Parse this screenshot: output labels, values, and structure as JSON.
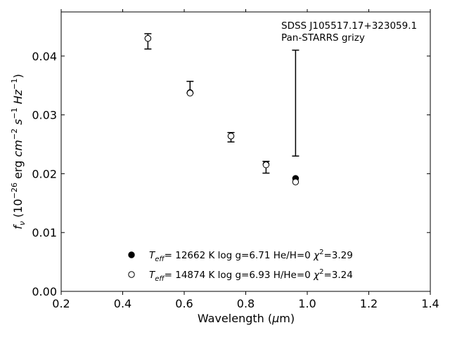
{
  "chart_data": {
    "type": "scatter",
    "xlabel_main": "Wavelength (",
    "xlabel_mu": "μ",
    "xlabel_unit": "m)",
    "ylabel": "f_ν (10^-26 erg cm^-2 s^-1 Hz^-1)",
    "ylabel_parts": {
      "f": "f",
      "nu": "ν",
      "open": " (10",
      "exp26": "−26",
      "erg": " erg ",
      "cm": "cm",
      "expm2": "−2",
      "s": "s",
      "expm1a": "−1",
      "hz": "Hz",
      "expm1b": "−1",
      "close": ")"
    },
    "xlim": [
      0.2,
      1.4
    ],
    "ylim": [
      0.0,
      0.0475
    ],
    "xticks": [
      0.2,
      0.4,
      0.6,
      0.8,
      1.0,
      1.2,
      1.4
    ],
    "xtick_labels": [
      "0.2",
      "0.4",
      "0.6",
      "0.8",
      "1.0",
      "1.2",
      "1.4"
    ],
    "yticks": [
      0.0,
      0.01,
      0.02,
      0.03,
      0.04
    ],
    "ytick_labels": [
      "0.00",
      "0.01",
      "0.02",
      "0.03",
      "0.04"
    ],
    "annotations": [
      "SDSS J105517.17+323059.1",
      "Pan-STARRS grizy"
    ],
    "observed": {
      "x": [
        0.482,
        0.619,
        0.752,
        0.866,
        0.962
      ],
      "y": [
        0.0425,
        0.0347,
        0.0262,
        0.0211,
        0.032
      ],
      "yerr": [
        0.0013,
        0.001,
        0.0008,
        0.001,
        0.009
      ]
    },
    "series": [
      {
        "name": "T_eff= 12662 K  log g=6.71  He/H=0  χ²=3.29",
        "marker": "filled-circle",
        "x": [
          0.482,
          0.619,
          0.752,
          0.866,
          0.962
        ],
        "y": [
          0.043,
          0.0338,
          0.0264,
          0.0216,
          0.0192
        ]
      },
      {
        "name": "T_eff= 14874 K  log g=6.93  H/He=0  χ²=3.24",
        "marker": "open-circle",
        "x": [
          0.482,
          0.619,
          0.752,
          0.866,
          0.962
        ],
        "y": [
          0.043,
          0.0337,
          0.0264,
          0.0215,
          0.0186
        ]
      }
    ],
    "legend": [
      {
        "marker": "filled-circle",
        "teff": "12662",
        "rest1": "= ",
        "rest2": " K  log g=6.71  He/H=0  ",
        "chi": "3.29"
      },
      {
        "marker": "open-circle",
        "teff": "14874",
        "rest1": "= ",
        "rest2": " K  log g=6.93  H/He=0  ",
        "chi": "3.24"
      }
    ],
    "legend_placement": "lower-center",
    "grid": false,
    "colors": {
      "marker": "#000000",
      "axes": "#000000",
      "background": "#ffffff"
    }
  }
}
